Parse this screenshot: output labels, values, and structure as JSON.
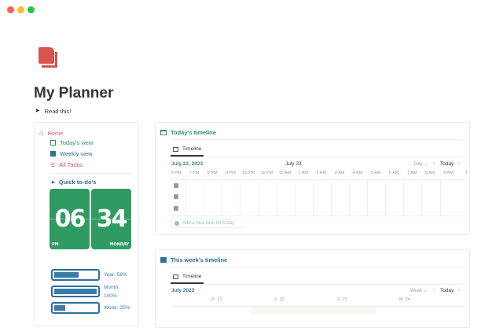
{
  "window": {
    "controls": {
      "close": "#ff5f57",
      "minimize": "#febc2e",
      "maximize": "#28c840"
    }
  },
  "page": {
    "icon": "notebook-icon",
    "title": "My Planner",
    "toggle": "Read this!"
  },
  "sidebar": {
    "home": "Home",
    "items": [
      {
        "label": "Today's view",
        "icon": "calendar-icon",
        "color": "#2f8f5b"
      },
      {
        "label": "Weekly view",
        "icon": "calendar-week-icon",
        "color": "#2f6f9b"
      },
      {
        "label": "All Tasks",
        "icon": "checklist-icon",
        "color": "#d44c7c"
      }
    ],
    "quick": "Quick to-do's",
    "clock": {
      "hour": "06",
      "minute": "34",
      "ampm": "PM",
      "day": "MONDAY"
    },
    "progress": [
      {
        "label": "Year: 58%",
        "value": 58
      },
      {
        "label": "Month: 100%",
        "value": 100
      },
      {
        "label": "Week: 25%",
        "value": 25
      }
    ]
  },
  "today": {
    "title": "Today's timeline",
    "tab": "Timeline",
    "date": "July 22, 2023",
    "center": "July 23",
    "view": "Day",
    "today_btn": "Today",
    "hours": [
      "6 PM",
      "7 PM",
      "8 PM",
      "9 PM",
      "10 PM",
      "11 PM",
      "12 AM",
      "1 AM",
      "2 AM",
      "3 AM",
      "4 AM",
      "5 AM",
      "6 AM",
      "7 AM",
      "8 AM",
      "9 AM",
      "1"
    ],
    "add": "Add a new task for today"
  },
  "week": {
    "title": "This week's timeline",
    "tab": "Timeline",
    "date": "July 2023",
    "view": "Week",
    "today_btn": "Today",
    "days": [
      "F  21",
      "S  22",
      "S  23",
      "M  24"
    ]
  }
}
